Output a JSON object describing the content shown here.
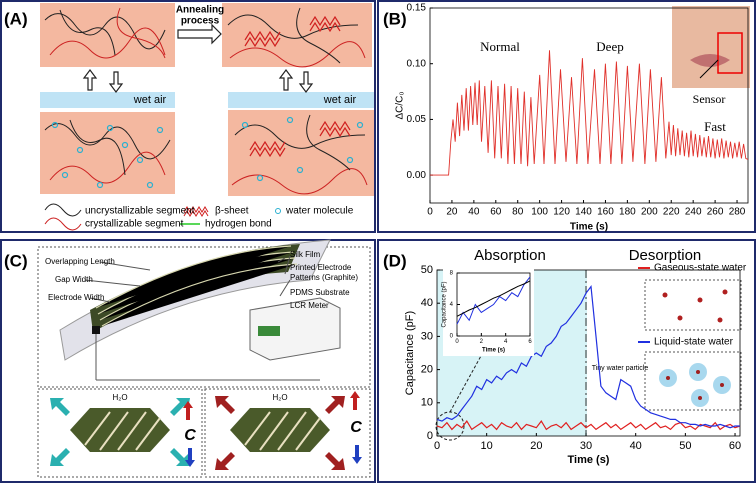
{
  "panel_labels": [
    "(A)",
    "(B)",
    "(C)",
    "(D)"
  ],
  "panel_a": {
    "annealing": [
      "Annealing",
      "process"
    ],
    "wet_air": [
      "wet air",
      "wet air"
    ],
    "legend": [
      "uncrystallizable segment",
      "crystallizable segment",
      "β-sheet",
      "hydrogen bond",
      "water molecule"
    ]
  },
  "panel_c": {
    "labels": [
      "Overlapping Length",
      "Gap Width",
      "Electrode Width",
      "Silk Film"
    ],
    "electrode": [
      "Printed Electrode",
      "Patterns (Graphite)"
    ],
    "substrate": "PDMS Substrate",
    "meter": "LCR Meter",
    "h2o": [
      "H₂O",
      "H₂O"
    ],
    "c": [
      "C",
      "C"
    ]
  },
  "chart_data": [
    {
      "type": "line",
      "xlabel": "Time (s)",
      "ylabel": "ΔC/C₀",
      "annotations": [
        "Normal",
        "Deep",
        "Fast",
        "Sensor"
      ],
      "xlim": [
        0,
        290
      ],
      "ylim": [
        -0.025,
        0.15
      ],
      "xticks": [
        0,
        20,
        40,
        60,
        80,
        100,
        120,
        140,
        160,
        180,
        200,
        220,
        240,
        260,
        280
      ],
      "yticks": [
        {
          "value": 0,
          "label": "0.00"
        },
        {
          "value": 0.05,
          "label": "0.05"
        },
        {
          "value": 0.1,
          "label": "0.10"
        },
        {
          "value": 0.15,
          "label": "0.15"
        }
      ],
      "x": [
        0,
        5,
        10,
        15,
        17,
        19,
        21,
        23,
        25,
        27,
        29,
        31,
        33,
        35,
        37,
        39,
        41,
        43,
        45,
        47,
        50,
        53,
        56,
        59,
        62,
        65,
        68,
        71,
        74,
        77,
        80,
        83,
        86,
        89,
        92,
        95,
        100,
        104,
        109,
        114,
        119,
        124,
        129,
        134,
        139,
        144,
        150,
        155,
        160,
        165,
        170,
        175,
        180,
        185,
        191,
        196,
        201,
        206,
        211,
        215,
        218,
        220,
        222,
        224,
        226,
        228,
        230,
        232,
        234,
        236,
        238,
        240,
        242,
        244,
        246,
        248,
        250,
        252,
        254,
        256,
        258,
        260,
        262,
        264,
        266,
        268,
        270,
        272,
        274,
        276,
        278,
        280,
        282,
        284,
        286,
        288,
        290
      ],
      "series": [
        {
          "color": "#e0302a",
          "values": [
            0,
            0,
            0,
            0,
            0,
            0.03,
            0.05,
            0.03,
            0.065,
            0.035,
            0.072,
            0.04,
            0.078,
            0.04,
            0.08,
            0.045,
            0.083,
            0.045,
            0.085,
            0.03,
            0.08,
            0.02,
            0.085,
            0.015,
            0.08,
            0.015,
            0.082,
            0.01,
            0.08,
            0.01,
            0.078,
            0.01,
            0.075,
            0.008,
            0.07,
            0.01,
            0.09,
            0.01,
            0.112,
            0.01,
            0.095,
            0.012,
            0.088,
            0.01,
            0.105,
            0.01,
            0.095,
            0.01,
            0.1,
            0.01,
            0.102,
            0.01,
            0.098,
            0.012,
            0.1,
            0.01,
            0.095,
            0.012,
            0.088,
            0.015,
            0.048,
            0.018,
            0.045,
            0.017,
            0.042,
            0.018,
            0.04,
            0.017,
            0.038,
            0.016,
            0.04,
            0.017,
            0.037,
            0.016,
            0.036,
            0.017,
            0.034,
            0.016,
            0.035,
            0.016,
            0.033,
            0.015,
            0.032,
            0.016,
            0.033,
            0.015,
            0.031,
            0.016,
            0.03,
            0.015,
            0.029,
            0.016,
            0.03,
            0.015,
            0.028,
            0.015,
            0.014
          ]
        }
      ]
    },
    {
      "type": "line",
      "xlabel": "Time (s)",
      "ylabel": "Capacitance (pF)",
      "annotations": [
        "Absorption",
        "Desorption",
        "Tiny water particle"
      ],
      "xlim": [
        0,
        61
      ],
      "ylim": [
        0,
        50
      ],
      "xticks": [
        0,
        10,
        20,
        30,
        40,
        50,
        60
      ],
      "yticks": [
        0,
        10,
        20,
        30,
        40,
        50
      ],
      "x": [
        0,
        1,
        2,
        3,
        4,
        5,
        6,
        7,
        8,
        9,
        10,
        11,
        12,
        13,
        14,
        15,
        16,
        17,
        18,
        19,
        20,
        21,
        22,
        23,
        24,
        25,
        26,
        27,
        28,
        29,
        30,
        31,
        32,
        33,
        34,
        35,
        36,
        37,
        38,
        39,
        40,
        41,
        42,
        43,
        44,
        45,
        46,
        47,
        48,
        49,
        50,
        51,
        52,
        53,
        54,
        55,
        56,
        57,
        58,
        59,
        60,
        61
      ],
      "series": [
        {
          "name": "Gaseous-state water",
          "color": "#e02020",
          "values": [
            3,
            2.5,
            4,
            2,
            3.5,
            2.5,
            4.5,
            2,
            3,
            4,
            2.5,
            3.5,
            2,
            4,
            3,
            2.5,
            4,
            2,
            3.5,
            3,
            2.5,
            4.5,
            2,
            3,
            3.5,
            2.5,
            4,
            2,
            3,
            4,
            2.5,
            3.5,
            2,
            3,
            4,
            2.5,
            3.5,
            2,
            3,
            4,
            2.5,
            3.5,
            2,
            3,
            4,
            2.5,
            3,
            2,
            3.5,
            4,
            2.5,
            3,
            2,
            3.5,
            3,
            2.5,
            4,
            2,
            3,
            3.5,
            2.5,
            3
          ]
        },
        {
          "name": "Liquid-state water",
          "color": "#2030e0",
          "values": [
            5,
            4.5,
            5.5,
            5,
            6,
            8,
            10,
            12,
            15,
            14,
            17,
            16,
            18,
            17,
            19,
            20,
            19,
            22,
            21,
            24,
            25,
            24,
            27,
            28,
            30,
            33,
            34,
            36,
            38,
            40,
            43,
            45,
            30,
            15,
            13,
            12,
            11,
            17,
            16,
            15,
            11,
            9,
            8,
            7,
            6.5,
            6,
            5.5,
            5,
            5,
            4,
            4,
            3.5,
            3.5,
            3,
            3.5,
            3,
            3,
            3.5,
            3,
            2.5,
            3,
            3
          ]
        }
      ]
    },
    {
      "type": "line",
      "xlabel": "Time (s)",
      "ylabel": "Capacitance (pF)",
      "xlim": [
        0,
        6
      ],
      "ylim": [
        0,
        8
      ],
      "xticks": [
        0,
        2,
        4,
        6
      ],
      "yticks": [
        0,
        4,
        8
      ],
      "x": [
        0,
        0.5,
        1,
        1.5,
        2,
        2.5,
        3,
        3.5,
        4,
        4.5,
        5,
        5.5,
        6
      ],
      "series": [
        {
          "color": "#2030e0",
          "values": [
            1.5,
            3,
            2,
            4,
            3,
            3.5,
            4,
            5,
            4.5,
            5.5,
            5,
            6.5,
            7.5
          ]
        },
        {
          "color": "#000000",
          "values": [
            2.5,
            2.9,
            3.3,
            3.6,
            4,
            4.4,
            4.8,
            5.1,
            5.5,
            5.9,
            6.3,
            6.6,
            7
          ]
        }
      ]
    }
  ]
}
